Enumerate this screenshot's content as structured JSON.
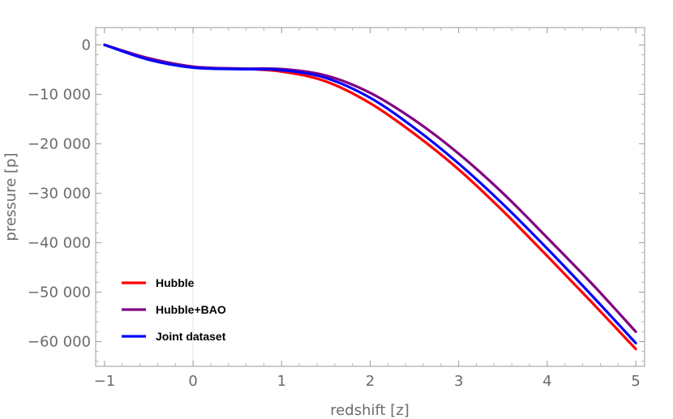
{
  "chart_data": {
    "type": "line",
    "xlabel": "redshift [z]",
    "ylabel": "pressure [p]",
    "xlim": [
      -1.1,
      5.1
    ],
    "ylim": [
      -65000,
      3500
    ],
    "x_ticks": [
      -1,
      0,
      1,
      2,
      3,
      4,
      5
    ],
    "x_tick_labels": [
      "−1",
      "0",
      "1",
      "2",
      "3",
      "4",
      "5"
    ],
    "y_ticks": [
      0,
      -10000,
      -20000,
      -30000,
      -40000,
      -50000,
      -60000
    ],
    "y_tick_labels": [
      "0",
      "−10 000",
      "−20 000",
      "−30 000",
      "−40 000",
      "−50 000",
      "−60 000"
    ],
    "grid": false,
    "legend_position": "bottom-left",
    "series": [
      {
        "name": "Hubble",
        "color": "#ff0000",
        "x": [
          -1,
          -0.5,
          0,
          0.5,
          1,
          1.5,
          2,
          2.5,
          3,
          3.5,
          4,
          4.5,
          5
        ],
        "y": [
          0,
          -2800,
          -4500,
          -4800,
          -5400,
          -7400,
          -11800,
          -18000,
          -25200,
          -33600,
          -42700,
          -52000,
          -61500
        ]
      },
      {
        "name": "Hubble+BAO",
        "color": "#800080",
        "x": [
          -1,
          -0.5,
          0,
          0.5,
          1,
          1.5,
          2,
          2.5,
          3,
          3.5,
          4,
          4.5,
          5
        ],
        "y": [
          0,
          -2700,
          -4400,
          -4800,
          -4900,
          -6200,
          -9700,
          -15200,
          -22000,
          -30000,
          -39000,
          -48200,
          -58000
        ]
      },
      {
        "name": "Joint dataset",
        "color": "#0000ff",
        "x": [
          -1,
          -0.5,
          0,
          0.5,
          1,
          1.5,
          2,
          2.5,
          3,
          3.5,
          4,
          4.5,
          5
        ],
        "y": [
          0,
          -3000,
          -4600,
          -4900,
          -5100,
          -6700,
          -10700,
          -16800,
          -24000,
          -32200,
          -41200,
          -50600,
          -60300
        ]
      }
    ]
  }
}
